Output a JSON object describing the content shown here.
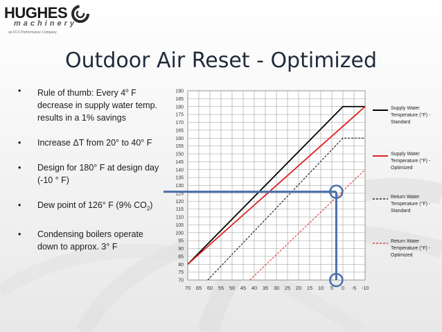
{
  "logo": {
    "name": "HUGHES",
    "sub": "machinery",
    "tagline": "an FCX Performance Company"
  },
  "title": "Outdoor Air Reset - Optimized",
  "bullets": [
    {
      "pre": "Rule of thumb:  Every 4",
      "sup": "o",
      "post": " F decrease in supply water temp. results in a 1% savings"
    },
    {
      "pre": "Increase ΔT from 20° to 40° F",
      "sup": "",
      "post": ""
    },
    {
      "pre": "Design for 180° F at design day (-10 ° F)",
      "sup": "",
      "post": ""
    },
    {
      "pre": "Dew point of 126° F (9% CO",
      "sub": "2",
      "post": ")"
    },
    {
      "pre": "Condensing boilers operate down to approx. 3° F",
      "sup": "",
      "post": ""
    }
  ],
  "colors": {
    "standard": "#000000",
    "optimized": "#e02020",
    "highlight": "#4a6ea9",
    "grid": "#9a9a9a"
  },
  "chart_data": {
    "type": "line",
    "x_ticks": [
      70,
      65,
      60,
      55,
      50,
      45,
      40,
      35,
      30,
      25,
      20,
      15,
      10,
      5,
      0,
      -5,
      -10
    ],
    "y_ticks": [
      70,
      75,
      80,
      85,
      90,
      95,
      100,
      105,
      110,
      115,
      120,
      125,
      130,
      135,
      140,
      145,
      150,
      155,
      160,
      165,
      170,
      175,
      180,
      185,
      190
    ],
    "xlim": [
      70,
      -10
    ],
    "ylim": [
      70,
      190
    ],
    "grid": true,
    "legend_position": "right",
    "series": [
      {
        "name": "Supply Water Temperature (°F) - Standard",
        "color": "#000000",
        "dash": "solid",
        "points": [
          [
            70,
            80
          ],
          [
            0,
            180
          ],
          [
            -10,
            180
          ]
        ]
      },
      {
        "name": "Supply Water Temperature (°F) - Optimized",
        "color": "#e02020",
        "dash": "solid",
        "points": [
          [
            70,
            80
          ],
          [
            -10,
            180
          ]
        ]
      },
      {
        "name": "Return Water Temperature (°F) - Standard",
        "color": "#000000",
        "dash": "dashed",
        "points": [
          [
            61,
            70
          ],
          [
            0,
            160
          ],
          [
            -10,
            160
          ]
        ]
      },
      {
        "name": "Return Water Temperature (°F) - Optimized",
        "color": "#e02020",
        "dash": "dashed",
        "points": [
          [
            42,
            70
          ],
          [
            -10,
            140
          ]
        ]
      }
    ],
    "annotations": [
      {
        "type": "dew-point-line",
        "y": 126
      },
      {
        "type": "condensing-limit-line",
        "x": 3
      },
      {
        "type": "circle",
        "x": 3,
        "y": 126
      },
      {
        "type": "circle",
        "x": 3,
        "y": 70
      }
    ]
  }
}
